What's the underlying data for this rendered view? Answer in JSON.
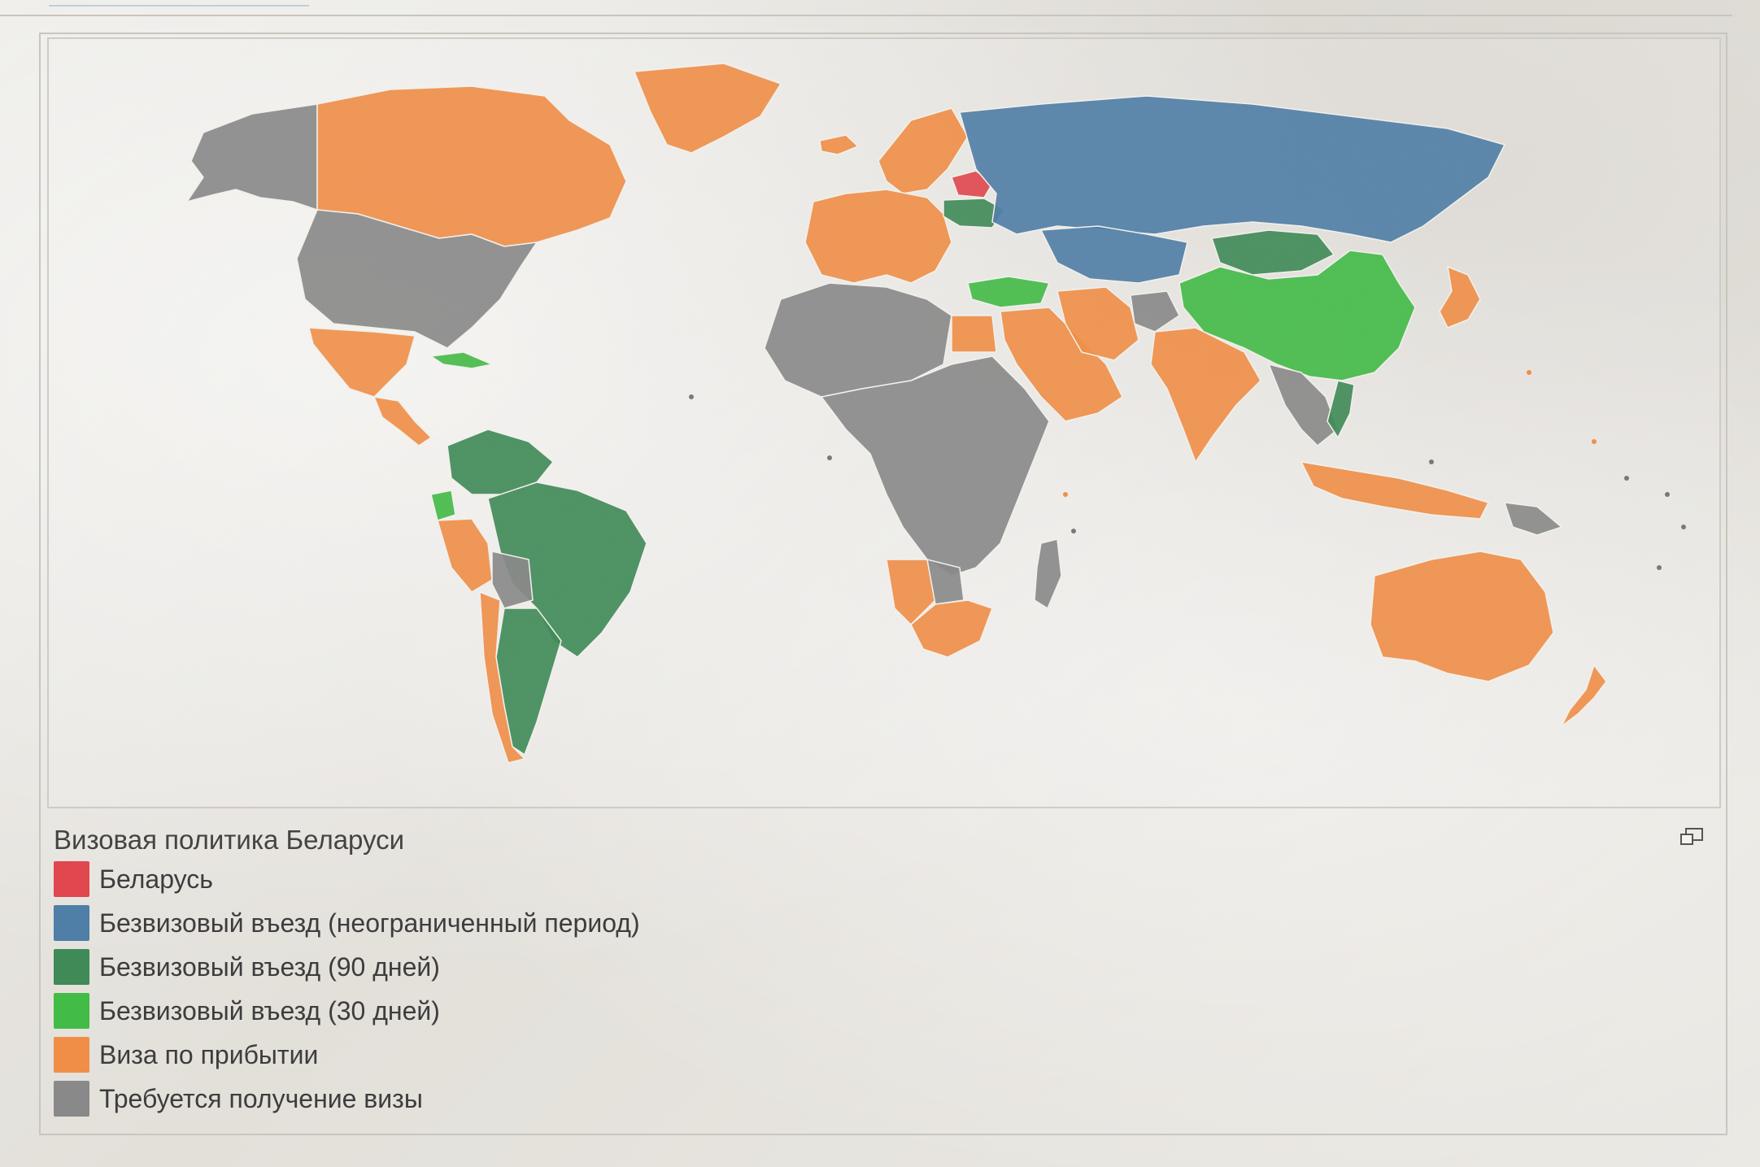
{
  "caption": {
    "title": "Визовая политика Беларуси"
  },
  "legend": [
    {
      "label": "Беларусь",
      "color": "#e0474e"
    },
    {
      "label": "Безвизовый въезд (неограниченный период)",
      "color": "#4f7ea6"
    },
    {
      "label": "Безвизовый въезд (90 дней)",
      "color": "#3f8a57"
    },
    {
      "label": "Безвизовый въезд (30 дней)",
      "color": "#42bb47"
    },
    {
      "label": "Виза по прибытии",
      "color": "#f08e48"
    },
    {
      "label": "Требуется получение визы",
      "color": "#898989"
    }
  ],
  "map": {
    "regions": [
      {
        "name": "alaska",
        "category": "visa-required"
      },
      {
        "name": "canada",
        "category": "visa-on-arrival"
      },
      {
        "name": "greenland",
        "category": "visa-on-arrival"
      },
      {
        "name": "usa",
        "category": "visa-required"
      },
      {
        "name": "mexico",
        "category": "visa-on-arrival"
      },
      {
        "name": "central-america",
        "category": "visa-on-arrival"
      },
      {
        "name": "cuba",
        "category": "visa-free-30"
      },
      {
        "name": "venezuela",
        "category": "visa-free-90"
      },
      {
        "name": "ecuador",
        "category": "visa-free-30"
      },
      {
        "name": "brazil",
        "category": "visa-free-90"
      },
      {
        "name": "peru",
        "category": "visa-on-arrival"
      },
      {
        "name": "bolivia",
        "category": "visa-required"
      },
      {
        "name": "argentina",
        "category": "visa-free-90"
      },
      {
        "name": "chile",
        "category": "visa-on-arrival"
      },
      {
        "name": "iceland",
        "category": "visa-on-arrival"
      },
      {
        "name": "scandinavia",
        "category": "visa-on-arrival"
      },
      {
        "name": "western-europe",
        "category": "visa-on-arrival"
      },
      {
        "name": "belarus",
        "category": "home"
      },
      {
        "name": "ukraine",
        "category": "visa-free-90"
      },
      {
        "name": "russia",
        "category": "visa-free-unlimited"
      },
      {
        "name": "kazakhstan",
        "category": "visa-free-unlimited"
      },
      {
        "name": "turkey",
        "category": "visa-free-30"
      },
      {
        "name": "middle-east",
        "category": "visa-on-arrival"
      },
      {
        "name": "iran",
        "category": "visa-on-arrival"
      },
      {
        "name": "afghanistan",
        "category": "visa-required"
      },
      {
        "name": "mongolia",
        "category": "visa-free-90"
      },
      {
        "name": "china",
        "category": "visa-free-30"
      },
      {
        "name": "india",
        "category": "visa-on-arrival"
      },
      {
        "name": "southeast-asia",
        "category": "visa-required"
      },
      {
        "name": "vietnam",
        "category": "visa-free-90"
      },
      {
        "name": "japan",
        "category": "visa-on-arrival"
      },
      {
        "name": "indonesia",
        "category": "visa-on-arrival"
      },
      {
        "name": "png",
        "category": "visa-required"
      },
      {
        "name": "north-africa",
        "category": "visa-required"
      },
      {
        "name": "egypt",
        "category": "visa-on-arrival"
      },
      {
        "name": "central-africa",
        "category": "visa-required"
      },
      {
        "name": "namibia",
        "category": "visa-on-arrival"
      },
      {
        "name": "botswana",
        "category": "visa-required"
      },
      {
        "name": "south-africa",
        "category": "visa-on-arrival"
      },
      {
        "name": "madagascar",
        "category": "visa-required"
      },
      {
        "name": "australia",
        "category": "visa-on-arrival"
      },
      {
        "name": "new-zealand",
        "category": "visa-on-arrival"
      }
    ]
  }
}
